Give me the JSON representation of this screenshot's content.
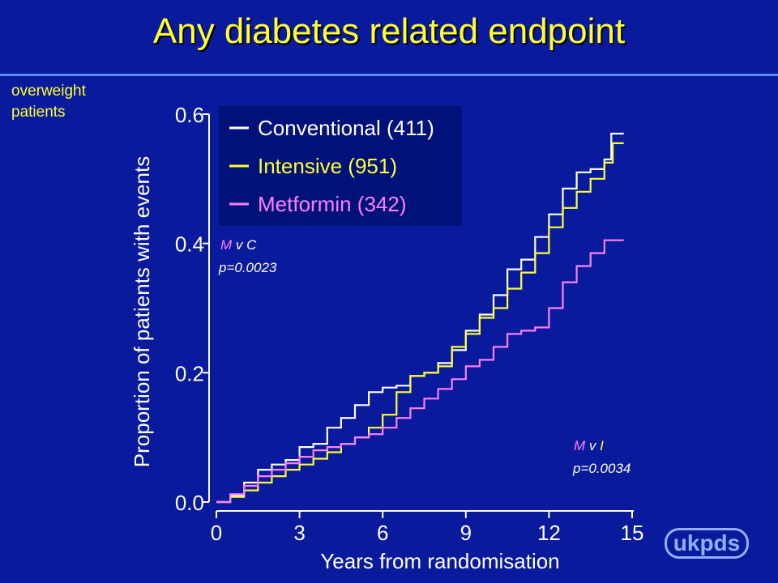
{
  "title": "Any diabetes related endpoint",
  "subset": [
    "overweight",
    "patients"
  ],
  "logo": "ukpds",
  "colors": {
    "background": "#0a1a9c",
    "title": "#ffff33",
    "conventional": "#ffffff",
    "intensive": "#ffff33",
    "metformin": "#ff80ff",
    "legend_box": "#00117a"
  },
  "chart_data": {
    "type": "line",
    "ylabel": "Proportion of patients with events",
    "xlabel": "Years from randomisation",
    "xlim": [
      0,
      15
    ],
    "ylim": [
      0,
      0.6
    ],
    "x_ticks": [
      "0",
      "3",
      "6",
      "9",
      "12",
      "15"
    ],
    "y_ticks": [
      "0.0",
      "0.2",
      "0.4",
      "0.6"
    ],
    "legend_position": "top-left",
    "legend": [
      {
        "label": "Conventional (411)",
        "color": "#ffffff"
      },
      {
        "label": "Intensive (951)",
        "color": "#ffff33"
      },
      {
        "label": "Metformin (342)",
        "color": "#ff80ff"
      }
    ],
    "annotations": {
      "mvc": {
        "m": "M",
        "v": " v ",
        "other": "C",
        "p": "p=0.0023"
      },
      "mvi": {
        "m": "M",
        "v": " v ",
        "other": "I",
        "p": "p=0.0034"
      }
    },
    "series": [
      {
        "name": "Conventional (411)",
        "color": "#ffffff",
        "points": [
          [
            0,
            0.0
          ],
          [
            0.5,
            0.01
          ],
          [
            1,
            0.03
          ],
          [
            1.5,
            0.05
          ],
          [
            2,
            0.058
          ],
          [
            2.5,
            0.065
          ],
          [
            3,
            0.085
          ],
          [
            3.5,
            0.09
          ],
          [
            4,
            0.115
          ],
          [
            4.5,
            0.13
          ],
          [
            5,
            0.15
          ],
          [
            5.5,
            0.17
          ],
          [
            6,
            0.177
          ],
          [
            6.5,
            0.18
          ],
          [
            7,
            0.195
          ],
          [
            7.5,
            0.2
          ],
          [
            8,
            0.215
          ],
          [
            8.5,
            0.235
          ],
          [
            9,
            0.265
          ],
          [
            9.5,
            0.29
          ],
          [
            10,
            0.32
          ],
          [
            10.5,
            0.36
          ],
          [
            11,
            0.375
          ],
          [
            11.5,
            0.41
          ],
          [
            12,
            0.445
          ],
          [
            12.5,
            0.485
          ],
          [
            13,
            0.51
          ],
          [
            13.5,
            0.515
          ],
          [
            14,
            0.53
          ],
          [
            14.25,
            0.57
          ],
          [
            14.7,
            0.57
          ]
        ]
      },
      {
        "name": "Intensive (951)",
        "color": "#ffff33",
        "points": [
          [
            0,
            0.0
          ],
          [
            0.5,
            0.008
          ],
          [
            1,
            0.018
          ],
          [
            1.5,
            0.03
          ],
          [
            2,
            0.04
          ],
          [
            2.5,
            0.05
          ],
          [
            3,
            0.058
          ],
          [
            3.5,
            0.067
          ],
          [
            4,
            0.077
          ],
          [
            4.5,
            0.09
          ],
          [
            5,
            0.1
          ],
          [
            5.5,
            0.115
          ],
          [
            6,
            0.135
          ],
          [
            6.5,
            0.17
          ],
          [
            7,
            0.195
          ],
          [
            7.5,
            0.2
          ],
          [
            8,
            0.21
          ],
          [
            8.5,
            0.24
          ],
          [
            9,
            0.26
          ],
          [
            9.5,
            0.285
          ],
          [
            10,
            0.3
          ],
          [
            10.5,
            0.33
          ],
          [
            11,
            0.355
          ],
          [
            11.5,
            0.385
          ],
          [
            12,
            0.425
          ],
          [
            12.5,
            0.455
          ],
          [
            13,
            0.48
          ],
          [
            13.5,
            0.5
          ],
          [
            14,
            0.525
          ],
          [
            14.3,
            0.555
          ],
          [
            14.7,
            0.555
          ]
        ]
      },
      {
        "name": "Metformin (342)",
        "color": "#ff80ff",
        "points": [
          [
            0,
            0.0
          ],
          [
            0.5,
            0.012
          ],
          [
            1,
            0.025
          ],
          [
            1.5,
            0.04
          ],
          [
            2,
            0.05
          ],
          [
            2.5,
            0.06
          ],
          [
            3,
            0.07
          ],
          [
            3.5,
            0.08
          ],
          [
            4,
            0.085
          ],
          [
            4.5,
            0.09
          ],
          [
            5,
            0.1
          ],
          [
            5.5,
            0.105
          ],
          [
            6,
            0.115
          ],
          [
            6.5,
            0.13
          ],
          [
            7,
            0.145
          ],
          [
            7.5,
            0.16
          ],
          [
            8,
            0.175
          ],
          [
            8.5,
            0.19
          ],
          [
            9,
            0.21
          ],
          [
            9.5,
            0.22
          ],
          [
            10,
            0.24
          ],
          [
            10.5,
            0.26
          ],
          [
            11,
            0.265
          ],
          [
            11.5,
            0.27
          ],
          [
            12,
            0.3
          ],
          [
            12.5,
            0.34
          ],
          [
            13,
            0.365
          ],
          [
            13.5,
            0.385
          ],
          [
            14,
            0.405
          ],
          [
            14.7,
            0.405
          ]
        ]
      }
    ]
  }
}
